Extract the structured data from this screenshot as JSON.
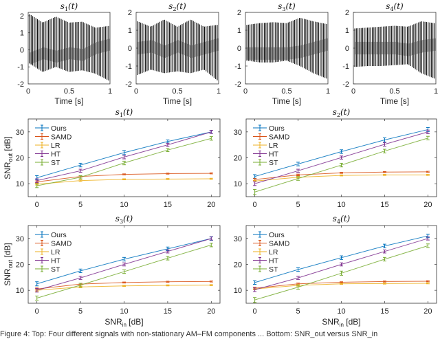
{
  "chart_data": [
    {
      "type": "line",
      "title": "s1(t)",
      "xlabel": "Time [s]",
      "ylabel": "",
      "xlim": [
        0,
        1
      ],
      "ylim": [
        -2,
        2.2
      ],
      "xticks": [
        "0",
        "0.5",
        "1"
      ],
      "yticks": [
        "-2",
        "-1",
        "0",
        "1",
        "2"
      ],
      "kind": "waveform",
      "envelope": {
        "upper": [
          2.1,
          1.6,
          1.95,
          1.6,
          1.65,
          1.3,
          1.4
        ],
        "lower": [
          -0.8,
          -1.3,
          -1.0,
          -1.3,
          -1.2,
          -1.4,
          -1.8
        ],
        "mid": [
          -0.5,
          -0.2,
          -0.4,
          -0.2,
          -0.3,
          0.1,
          0.3
        ]
      }
    },
    {
      "type": "line",
      "title": "s2(t)",
      "xlabel": "Time [s]",
      "ylabel": "",
      "xlim": [
        0,
        1
      ],
      "ylim": [
        -2,
        2
      ],
      "xticks": [
        "0",
        "0.5",
        "1"
      ],
      "yticks": [
        "-2",
        "-1",
        "0",
        "1",
        "2"
      ],
      "kind": "waveform",
      "envelope": {
        "upper": [
          1.5,
          1.2,
          1.6,
          1.2,
          1.6,
          1.2,
          1.3
        ],
        "lower": [
          -1.5,
          -1.2,
          -1.4,
          -1.3,
          -1.4,
          -1.2,
          -1.8
        ],
        "mid": [
          0,
          0.1,
          -0.2,
          0.1,
          -0.2,
          0,
          0.2
        ]
      }
    },
    {
      "type": "line",
      "title": "s3(t)",
      "xlabel": "Time [s]",
      "ylabel": "",
      "xlim": [
        0,
        1
      ],
      "ylim": [
        -2,
        2
      ],
      "xticks": [
        "0",
        "0.5",
        "1"
      ],
      "yticks": [
        "-2",
        "-1",
        "0",
        "1",
        "2"
      ],
      "kind": "waveform",
      "envelope": {
        "upper": [
          1.3,
          1.4,
          1.45,
          1.4,
          1.7,
          1.5,
          1.35
        ],
        "lower": [
          -0.7,
          -0.8,
          -0.8,
          -0.7,
          -1.0,
          -1.4,
          -1.7
        ],
        "mid": [
          -0.3,
          -0.3,
          -0.3,
          -0.3,
          -0.2,
          0,
          0.2
        ]
      }
    },
    {
      "type": "line",
      "title": "s4(t)",
      "xlabel": "Time [s]",
      "ylabel": "",
      "xlim": [
        0,
        1
      ],
      "ylim": [
        -2,
        2
      ],
      "xticks": [
        "0",
        "0.5",
        "1"
      ],
      "yticks": [
        "-2",
        "-1",
        "0",
        "1",
        "2"
      ],
      "kind": "waveform",
      "envelope": {
        "upper": [
          1.1,
          1.15,
          1.2,
          1.25,
          1.2,
          1.5,
          1.4
        ],
        "lower": [
          -1.05,
          -1.0,
          -1.0,
          -0.95,
          -0.9,
          -1.4,
          -1.7
        ],
        "mid": [
          0,
          0,
          0,
          0,
          -0.1,
          0.1,
          0.2
        ]
      }
    },
    {
      "type": "line",
      "title": "s1(t)",
      "xlabel": "",
      "ylabel": "SNR_out [dB]",
      "xlim": [
        -1,
        21
      ],
      "ylim": [
        5,
        35
      ],
      "xticks": [
        "0",
        "5",
        "10",
        "15",
        "20"
      ],
      "yticks": [
        "10",
        "20",
        "30"
      ],
      "x": [
        0,
        5,
        10,
        15,
        20
      ],
      "legend": "top-left",
      "series": [
        {
          "name": "Ours",
          "values": [
            12.3,
            17.2,
            22.0,
            26.3,
            30.0
          ],
          "err": [
            0.8,
            0.7,
            0.8,
            0.6,
            0.6
          ]
        },
        {
          "name": "SAMD",
          "values": [
            10.7,
            12.8,
            13.6,
            13.9,
            14.0
          ],
          "err": [
            0.4,
            0.3,
            0.2,
            0.2,
            0.2
          ]
        },
        {
          "name": "LR",
          "values": [
            9.8,
            11.2,
            11.7,
            11.8,
            11.9
          ],
          "err": [
            0.3,
            0.3,
            0.2,
            0.2,
            0.2
          ]
        },
        {
          "name": "HT",
          "values": [
            11.2,
            15.0,
            20.3,
            25.0,
            30.0
          ],
          "err": [
            0.7,
            0.6,
            0.7,
            0.6,
            0.6
          ]
        },
        {
          "name": "ST",
          "values": [
            9.2,
            12.5,
            18.0,
            23.0,
            27.5
          ],
          "err": [
            0.7,
            0.6,
            0.7,
            0.6,
            0.7
          ]
        }
      ]
    },
    {
      "type": "line",
      "title": "s2(t)",
      "xlabel": "",
      "ylabel": "",
      "xlim": [
        -1,
        21
      ],
      "ylim": [
        5,
        35
      ],
      "xticks": [
        "0",
        "5",
        "10",
        "15",
        "20"
      ],
      "yticks": [
        "10",
        "20",
        "30"
      ],
      "x": [
        0,
        5,
        10,
        15,
        20
      ],
      "legend": "top-left",
      "series": [
        {
          "name": "Ours",
          "values": [
            12.8,
            17.6,
            22.4,
            26.9,
            30.9
          ],
          "err": [
            0.7,
            0.7,
            0.7,
            0.8,
            0.8
          ]
        },
        {
          "name": "SAMD",
          "values": [
            11.6,
            13.4,
            14.2,
            14.5,
            14.6
          ],
          "err": [
            0.4,
            0.3,
            0.2,
            0.2,
            0.2
          ]
        },
        {
          "name": "LR",
          "values": [
            11.0,
            12.5,
            13.2,
            13.4,
            13.4
          ],
          "err": [
            0.3,
            0.3,
            0.2,
            0.2,
            0.2
          ]
        },
        {
          "name": "HT",
          "values": [
            10.0,
            15.0,
            20.1,
            25.2,
            30.0
          ],
          "err": [
            0.7,
            0.6,
            0.6,
            0.7,
            0.7
          ]
        },
        {
          "name": "ST",
          "values": [
            6.8,
            12.0,
            17.2,
            22.6,
            27.6
          ],
          "err": [
            1.0,
            0.7,
            0.7,
            0.7,
            0.7
          ]
        }
      ]
    },
    {
      "type": "line",
      "title": "s3(t)",
      "xlabel": "SNR_in [dB]",
      "ylabel": "SNR_out [dB]",
      "xlim": [
        -1,
        21
      ],
      "ylim": [
        5,
        35
      ],
      "xticks": [
        "0",
        "5",
        "10",
        "15",
        "20"
      ],
      "yticks": [
        "10",
        "20",
        "30"
      ],
      "x": [
        0,
        5,
        10,
        15,
        20
      ],
      "legend": "top-left",
      "series": [
        {
          "name": "Ours",
          "values": [
            12.5,
            17.5,
            22.0,
            26.0,
            30.0
          ],
          "err": [
            0.8,
            0.7,
            0.7,
            0.7,
            0.7
          ]
        },
        {
          "name": "SAMD",
          "values": [
            10.5,
            12.4,
            13.0,
            13.3,
            13.4
          ],
          "err": [
            0.4,
            0.3,
            0.2,
            0.2,
            0.2
          ]
        },
        {
          "name": "LR",
          "values": [
            10.0,
            11.3,
            11.7,
            11.9,
            12.0
          ],
          "err": [
            0.3,
            0.3,
            0.2,
            0.2,
            0.2
          ]
        },
        {
          "name": "HT",
          "values": [
            10.0,
            14.8,
            20.0,
            25.0,
            30.0
          ],
          "err": [
            0.7,
            0.6,
            0.6,
            0.6,
            0.6
          ]
        },
        {
          "name": "ST",
          "values": [
            7.0,
            12.0,
            17.2,
            22.4,
            27.5
          ],
          "err": [
            0.8,
            0.7,
            0.7,
            0.7,
            0.7
          ]
        }
      ]
    },
    {
      "type": "line",
      "title": "s4(t)",
      "xlabel": "SNR_in [dB]",
      "ylabel": "",
      "xlim": [
        -1,
        21
      ],
      "ylim": [
        5,
        35
      ],
      "xticks": [
        "0",
        "5",
        "10",
        "15",
        "20"
      ],
      "yticks": [
        "10",
        "20",
        "30"
      ],
      "x": [
        0,
        5,
        10,
        15,
        20
      ],
      "legend": "top-left",
      "series": [
        {
          "name": "Ours",
          "values": [
            13.0,
            18.0,
            22.6,
            27.1,
            31.0
          ],
          "err": [
            0.7,
            0.7,
            0.7,
            0.7,
            0.7
          ]
        },
        {
          "name": "SAMD",
          "values": [
            10.8,
            12.5,
            13.1,
            13.4,
            13.5
          ],
          "err": [
            0.4,
            0.3,
            0.2,
            0.2,
            0.2
          ]
        },
        {
          "name": "LR",
          "values": [
            10.5,
            11.9,
            12.5,
            12.6,
            12.7
          ],
          "err": [
            0.3,
            0.3,
            0.2,
            0.2,
            0.2
          ]
        },
        {
          "name": "HT",
          "values": [
            10.2,
            14.8,
            20.0,
            25.0,
            30.0
          ],
          "err": [
            0.7,
            0.6,
            0.6,
            0.6,
            0.6
          ]
        },
        {
          "name": "ST",
          "values": [
            6.3,
            11.2,
            16.6,
            22.0,
            27.2
          ],
          "err": [
            0.9,
            0.8,
            0.8,
            0.7,
            0.7
          ]
        }
      ]
    }
  ],
  "series_colors": {
    "Ours": "#0072BD",
    "SAMD": "#D95319",
    "LR": "#EDB120",
    "HT": "#7E2F8E",
    "ST": "#77AC30"
  },
  "caption": "Figure 4: Top: Four different signals with non-stationary AM–FM components ... Bottom: SNR_out versus SNR_in"
}
